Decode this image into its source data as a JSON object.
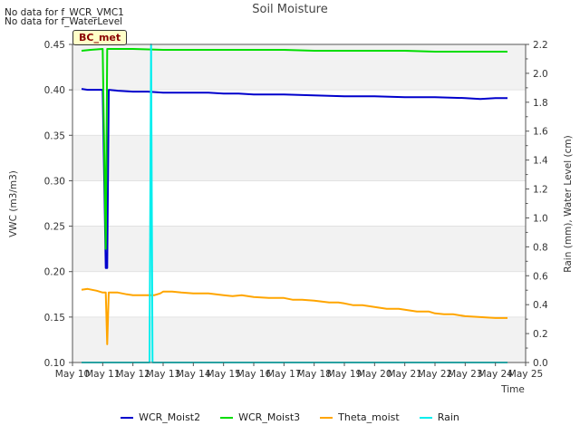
{
  "header": {
    "notes": [
      "No data for f_WCR_VMC1",
      "No data for f_WaterLevel"
    ],
    "badge": "BC_met"
  },
  "chart_data": {
    "type": "line",
    "title": "Soil Moisture",
    "xlabel": "Time",
    "ylabel": "VWC (m3/m3)",
    "y2label": "Rain (mm), Water Level (cm)",
    "xlim": [
      10,
      25
    ],
    "ylim": [
      0.1,
      0.45
    ],
    "y2lim": [
      0.0,
      2.2
    ],
    "xticks": [
      10,
      11,
      12,
      13,
      14,
      15,
      16,
      17,
      18,
      19,
      20,
      21,
      22,
      23,
      24,
      25
    ],
    "xtick_labels": [
      "May 10",
      "May 11",
      "May 12",
      "May 13",
      "May 14",
      "May 15",
      "May 16",
      "May 17",
      "May 18",
      "May 19",
      "May 20",
      "May 21",
      "May 22",
      "May 23",
      "May 24",
      "May 25"
    ],
    "yticks": [
      0.1,
      0.15,
      0.2,
      0.25,
      0.3,
      0.35,
      0.4,
      0.45
    ],
    "ytick_labels": [
      "0.10",
      "0.15",
      "0.20",
      "0.25",
      "0.30",
      "0.35",
      "0.40",
      "0.45"
    ],
    "y2ticks": [
      0.0,
      0.2,
      0.4,
      0.6,
      0.8,
      1.0,
      1.2,
      1.4,
      1.6,
      1.8,
      2.0,
      2.2
    ],
    "y2tick_labels": [
      "0.0",
      "0.2",
      "0.4",
      "0.6",
      "0.8",
      "1.0",
      "1.2",
      "1.4",
      "1.6",
      "1.8",
      "2.0",
      "2.2"
    ],
    "bands": [
      [
        0.1,
        0.15
      ],
      [
        0.2,
        0.25
      ],
      [
        0.3,
        0.35
      ],
      [
        0.4,
        0.45
      ]
    ],
    "series": [
      {
        "name": "WCR_Moist2",
        "color": "#0000cc",
        "axis": "left",
        "x": [
          10.3,
          10.5,
          11.0,
          11.1,
          11.15,
          11.2,
          11.5,
          12.0,
          12.5,
          13.0,
          13.5,
          14.0,
          14.5,
          15.0,
          15.5,
          16.0,
          17.0,
          18.0,
          19.0,
          20.0,
          21.0,
          22.0,
          23.0,
          23.5,
          24.0,
          24.4
        ],
        "y": [
          0.401,
          0.4,
          0.4,
          0.204,
          0.204,
          0.4,
          0.399,
          0.398,
          0.398,
          0.397,
          0.397,
          0.397,
          0.397,
          0.396,
          0.396,
          0.395,
          0.395,
          0.394,
          0.393,
          0.393,
          0.392,
          0.392,
          0.391,
          0.39,
          0.391,
          0.391
        ]
      },
      {
        "name": "WCR_Moist3",
        "color": "#00dd00",
        "axis": "left",
        "x": [
          10.3,
          10.6,
          11.0,
          11.1,
          11.15,
          11.2,
          11.5,
          12.0,
          13.0,
          14.0,
          15.0,
          16.0,
          17.0,
          18.0,
          19.0,
          20.0,
          21.0,
          22.0,
          23.0,
          24.0,
          24.4
        ],
        "y": [
          0.443,
          0.444,
          0.445,
          0.225,
          0.445,
          0.445,
          0.445,
          0.445,
          0.444,
          0.444,
          0.444,
          0.444,
          0.444,
          0.443,
          0.443,
          0.443,
          0.443,
          0.442,
          0.442,
          0.442,
          0.442
        ]
      },
      {
        "name": "Theta_moist",
        "color": "#ffa500",
        "axis": "left",
        "x": [
          10.3,
          10.5,
          10.8,
          11.0,
          11.1,
          11.15,
          11.2,
          11.5,
          11.8,
          12.0,
          12.5,
          12.7,
          12.9,
          13.0,
          13.3,
          13.6,
          14.0,
          14.5,
          15.0,
          15.3,
          15.6,
          16.0,
          16.5,
          17.0,
          17.3,
          17.6,
          18.0,
          18.5,
          18.8,
          19.0,
          19.3,
          19.6,
          20.0,
          20.4,
          20.8,
          21.0,
          21.4,
          21.8,
          22.0,
          22.3,
          22.6,
          23.0,
          23.5,
          24.0,
          24.4
        ],
        "y": [
          0.18,
          0.181,
          0.179,
          0.177,
          0.177,
          0.12,
          0.177,
          0.177,
          0.175,
          0.174,
          0.174,
          0.174,
          0.176,
          0.178,
          0.178,
          0.177,
          0.176,
          0.176,
          0.174,
          0.173,
          0.174,
          0.172,
          0.171,
          0.171,
          0.169,
          0.169,
          0.168,
          0.166,
          0.166,
          0.165,
          0.163,
          0.163,
          0.161,
          0.159,
          0.159,
          0.158,
          0.156,
          0.156,
          0.154,
          0.153,
          0.153,
          0.151,
          0.15,
          0.149,
          0.149
        ]
      },
      {
        "name": "Rain",
        "color": "#00eeee",
        "axis": "right",
        "x": [
          10.3,
          12.55,
          12.6,
          12.65,
          12.7,
          24.4
        ],
        "y": [
          0.0,
          0.0,
          2.2,
          0.0,
          0.0,
          0.0
        ]
      }
    ]
  }
}
